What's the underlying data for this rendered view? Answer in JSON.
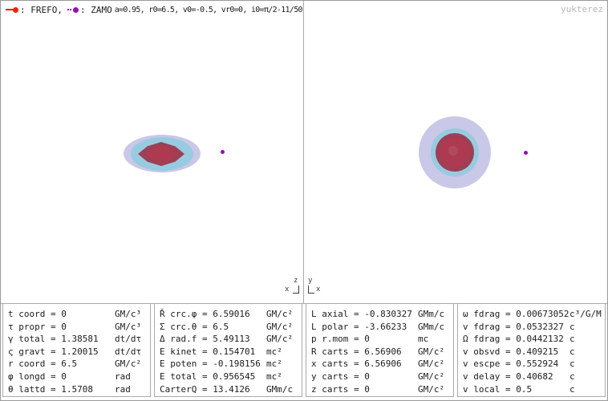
{
  "header": {
    "legend": {
      "frefo_label": ": FREFO,",
      "zamo_label": ": ZAMO",
      "params": "a=0.95, r0=6.5, v0=-0.5, vr0=0, i0=π/2-11/50"
    },
    "watermark": "yukterez"
  },
  "panels": {
    "left": {
      "axis_vertical": "z",
      "axis_horizontal": "x"
    },
    "right": {
      "axis_vertical": "y",
      "axis_horizontal": "x"
    }
  },
  "tables": [
    {
      "rows": [
        {
          "name": "t coord",
          "value": "0",
          "unit": "GM/c³"
        },
        {
          "name": "τ propr",
          "value": "0",
          "unit": "GM/c³"
        },
        {
          "name": "γ total",
          "value": "1.38581",
          "unit": "dt/dτ"
        },
        {
          "name": "ς gravt",
          "value": "1.20015",
          "unit": "dt/dτ"
        },
        {
          "name": "r coord",
          "value": "6.5",
          "unit": "GM/c²"
        },
        {
          "name": "φ longd",
          "value": "0",
          "unit": "rad"
        },
        {
          "name": "θ lattd",
          "value": "1.5708",
          "unit": "rad"
        }
      ]
    },
    {
      "rows": [
        {
          "name": "Ř crc.φ",
          "value": "6.59016",
          "unit": "GM/c²"
        },
        {
          "name": "Σ crc.θ",
          "value": "6.5",
          "unit": "GM/c²"
        },
        {
          "name": "Δ rad.f",
          "value": "5.49113",
          "unit": "GM/c²"
        },
        {
          "name": "E kinet",
          "value": "0.154701",
          "unit": "mc²"
        },
        {
          "name": "E poten",
          "value": "-0.198156",
          "unit": "mc²"
        },
        {
          "name": "E total",
          "value": "0.956545",
          "unit": "mc²"
        },
        {
          "name": "CarterQ",
          "value": "13.4126",
          "unit": "GMm/c"
        }
      ]
    },
    {
      "rows": [
        {
          "name": "L axial",
          "value": "-0.830327",
          "unit": "GMm/c"
        },
        {
          "name": "L polar",
          "value": "-3.66233",
          "unit": "GMm/c"
        },
        {
          "name": "p r.mom",
          "value": "0",
          "unit": "mc"
        },
        {
          "name": "R carts",
          "value": "6.56906",
          "unit": "GM/c²"
        },
        {
          "name": "x carts",
          "value": "6.56906",
          "unit": "GM/c²"
        },
        {
          "name": "y carts",
          "value": "0",
          "unit": "GM/c²"
        },
        {
          "name": "z carts",
          "value": "0",
          "unit": "GM/c²"
        }
      ]
    },
    {
      "rows": [
        {
          "name": "ω fdrag",
          "value": "0.00673052",
          "unit": "c³/G/M"
        },
        {
          "name": "v fdrag",
          "value": "0.0532327",
          "unit": "c"
        },
        {
          "name": "Ω fdrag",
          "value": "0.0442132",
          "unit": "c"
        },
        {
          "name": "v obsvd",
          "value": "0.409215",
          "unit": "c"
        },
        {
          "name": "v escpe",
          "value": "0.552924",
          "unit": "c"
        },
        {
          "name": "v delay",
          "value": "0.40682",
          "unit": "c"
        },
        {
          "name": "v local",
          "value": "0.5",
          "unit": "c"
        }
      ]
    }
  ],
  "colors": {
    "accent_red": "#e8260c",
    "accent_purple": "#9412ad",
    "ergo_lavender": "#c9c8e9",
    "horizon_cyan": "#98cbe0",
    "horizon_red": "#9c4056",
    "horizon_red_inner": "#ae3a51",
    "horizon_spot": "#b04b5e",
    "frame": "#aaaaaa",
    "text": "#1c1c1c",
    "watermark": "#b6b6c0"
  }
}
